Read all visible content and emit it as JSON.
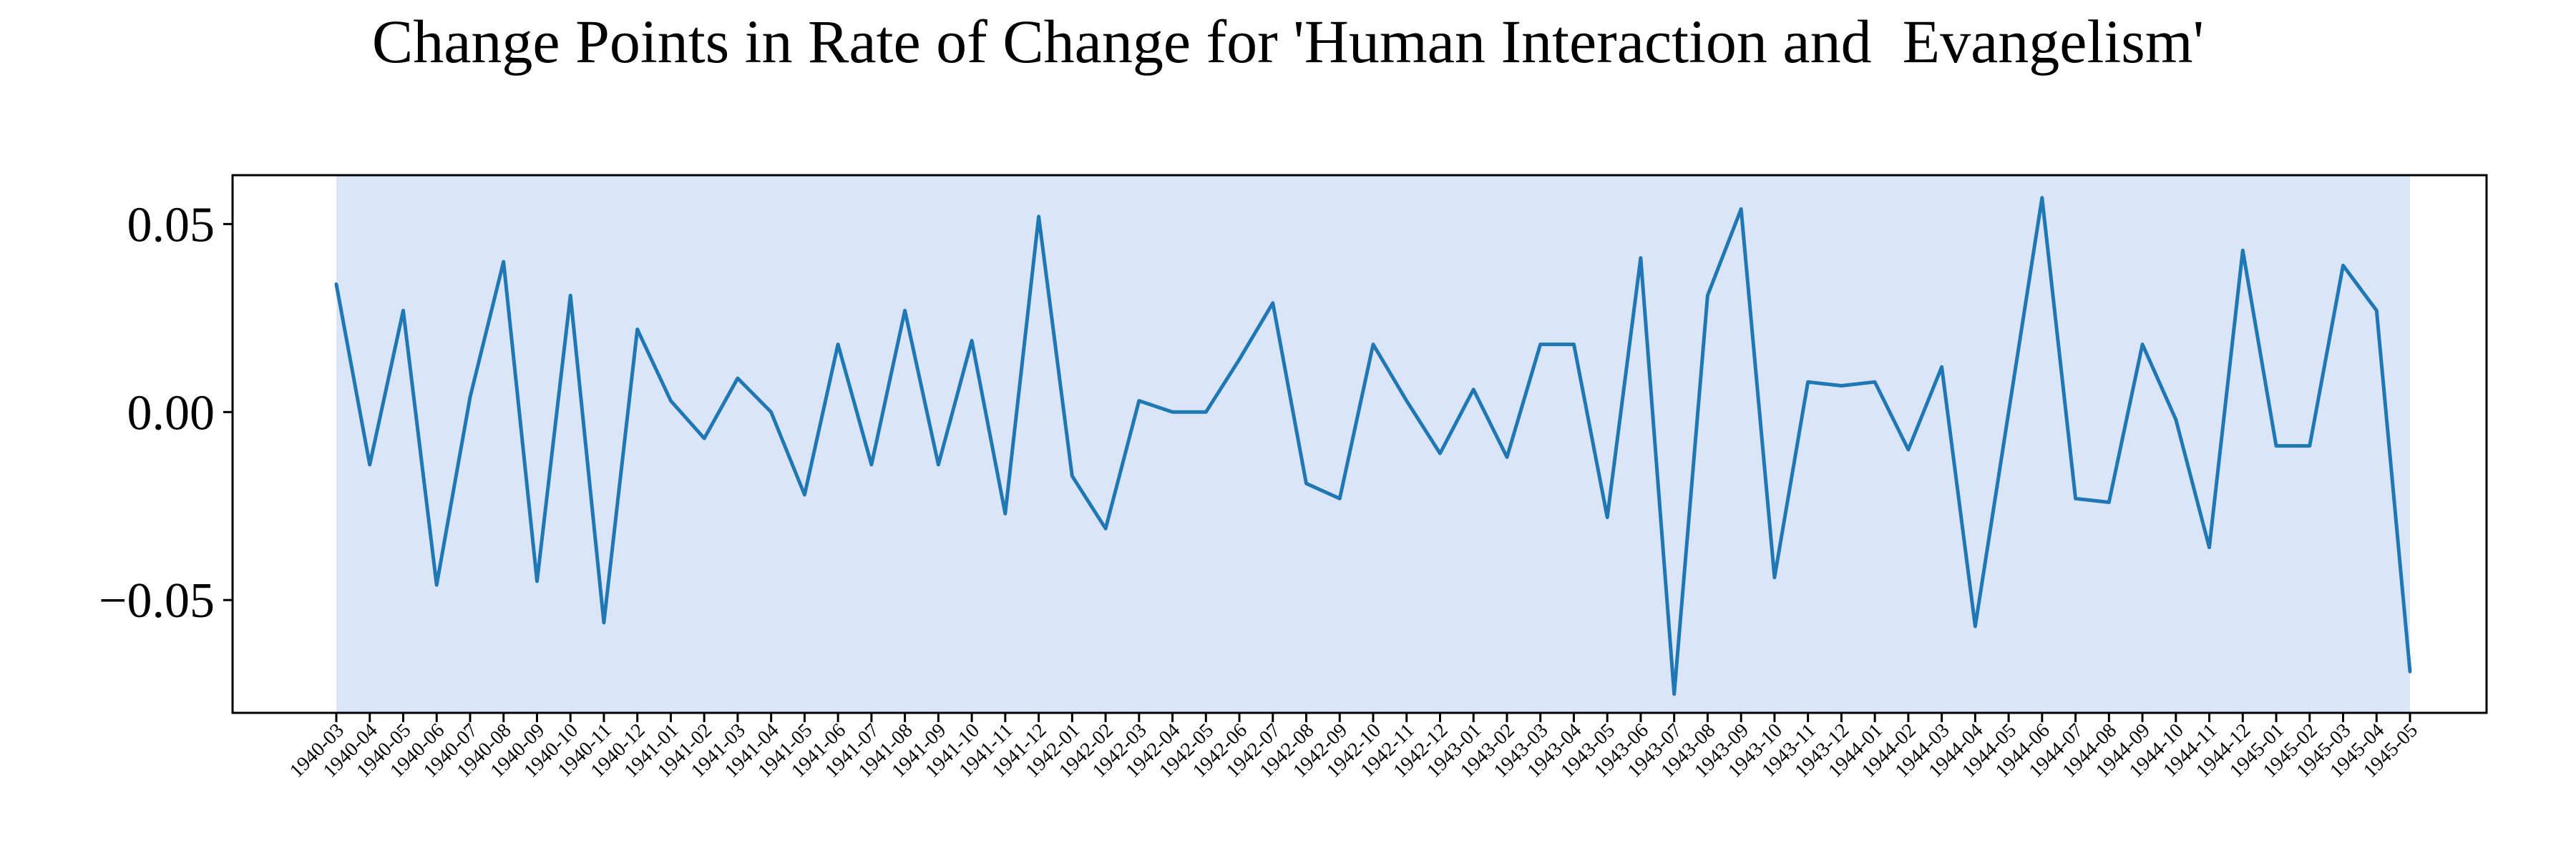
{
  "chart_data": {
    "type": "line",
    "title": "Change Points in Rate of Change for 'Human Interaction and  Evangelism'",
    "xlabel": "",
    "ylabel": "",
    "ylim": [
      -0.08,
      0.063
    ],
    "y_ticks": [
      0.05,
      0.0,
      -0.05
    ],
    "y_tick_labels": [
      "0.05",
      "0.00",
      "−0.05"
    ],
    "grid": false,
    "colors": {
      "line": "#1f77b4",
      "shaded_region": "#dae6f8",
      "frame": "#000000"
    },
    "shaded_regions": [
      {
        "x_start": "1940-03",
        "x_end": "1945-05"
      }
    ],
    "x": [
      "1940-03",
      "1940-04",
      "1940-05",
      "1940-06",
      "1940-07",
      "1940-08",
      "1940-09",
      "1940-10",
      "1940-11",
      "1940-12",
      "1941-01",
      "1941-02",
      "1941-03",
      "1941-04",
      "1941-05",
      "1941-06",
      "1941-07",
      "1941-08",
      "1941-09",
      "1941-10",
      "1941-11",
      "1941-12",
      "1942-01",
      "1942-02",
      "1942-03",
      "1942-04",
      "1942-05",
      "1942-06",
      "1942-07",
      "1942-08",
      "1942-09",
      "1942-10",
      "1942-11",
      "1942-12",
      "1943-01",
      "1943-02",
      "1943-03",
      "1943-04",
      "1943-05",
      "1943-06",
      "1943-07",
      "1943-08",
      "1943-09",
      "1943-10",
      "1943-11",
      "1943-12",
      "1944-01",
      "1944-02",
      "1944-03",
      "1944-04",
      "1944-05",
      "1944-06",
      "1944-07",
      "1944-08",
      "1944-09",
      "1944-10",
      "1944-11",
      "1944-12",
      "1945-01",
      "1945-02",
      "1945-03",
      "1945-04",
      "1945-05"
    ],
    "series": [
      {
        "values": [
          0.034,
          -0.014,
          0.027,
          -0.046,
          0.004,
          0.04,
          -0.045,
          0.031,
          -0.056,
          0.022,
          0.003,
          -0.007,
          0.009,
          0.0,
          -0.022,
          0.018,
          -0.014,
          0.027,
          -0.014,
          0.019,
          -0.027,
          0.052,
          -0.017,
          -0.031,
          0.003,
          0.0,
          0.0,
          0.014,
          0.029,
          -0.019,
          -0.023,
          0.018,
          0.003,
          -0.011,
          0.006,
          -0.012,
          0.018,
          0.018,
          -0.028,
          0.041,
          -0.075,
          0.031,
          0.054,
          -0.044,
          0.008,
          0.007,
          0.008,
          -0.01,
          0.012,
          -0.057,
          0.0,
          0.057,
          -0.023,
          -0.024,
          0.018,
          -0.002,
          -0.036,
          0.043,
          -0.009,
          -0.009,
          0.039,
          0.027,
          -0.069
        ]
      }
    ]
  }
}
